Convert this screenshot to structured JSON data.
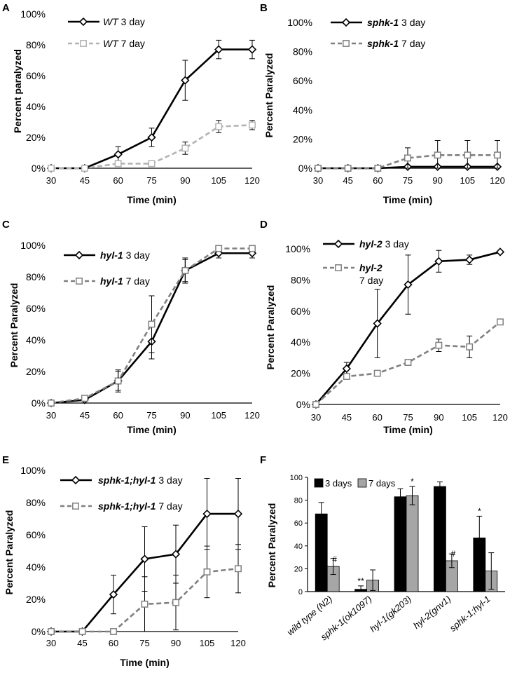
{
  "chart_data": [
    {
      "panel": "A",
      "type": "line",
      "ylabel": "Percent paralyzed",
      "xlabel": "Time (min)",
      "x": [
        "30",
        "45",
        "60",
        "75",
        "90",
        "105",
        "120"
      ],
      "yticks": [
        "0%",
        "20%",
        "40%",
        "60%",
        "80%",
        "100%"
      ],
      "ylim": [
        0,
        100
      ],
      "legend_position": "top-left",
      "series": [
        {
          "name": "3 day",
          "strain": "WT",
          "style": "solid",
          "marker": "diamond",
          "color": "#000000",
          "values": [
            0,
            0,
            9,
            20,
            57,
            77,
            77
          ],
          "errors": [
            0,
            0,
            5,
            6,
            13,
            6,
            6
          ]
        },
        {
          "name": "7 day",
          "strain": "WT",
          "style": "dashed",
          "marker": "square",
          "color": "#b3b3b3",
          "values": [
            0,
            0,
            3,
            3,
            13,
            27,
            28
          ],
          "errors": [
            0,
            0,
            0,
            0,
            4,
            4,
            3
          ]
        }
      ]
    },
    {
      "panel": "B",
      "type": "line",
      "ylabel": "Percent Paralyzed",
      "xlabel": "Time (min)",
      "x": [
        "30",
        "45",
        "60",
        "75",
        "90",
        "105",
        "120"
      ],
      "yticks": [
        "0%",
        "20%",
        "40%",
        "60%",
        "80%",
        "100%"
      ],
      "ylim": [
        0,
        100
      ],
      "legend_position": "top-left",
      "series": [
        {
          "name": "3 day",
          "strain": "sphk-1",
          "style": "solid",
          "marker": "diamond",
          "color": "#000000",
          "values": [
            0,
            0,
            0,
            1,
            1,
            1,
            1
          ],
          "errors": [
            0,
            0,
            0,
            0,
            0,
            0,
            0
          ]
        },
        {
          "name": "7 day",
          "strain": "sphk-1",
          "style": "dashed",
          "marker": "square",
          "color": "#808080",
          "values": [
            0,
            0,
            0,
            7,
            9,
            9,
            9
          ],
          "errors": [
            0,
            0,
            0,
            7,
            10,
            10,
            10
          ]
        }
      ]
    },
    {
      "panel": "C",
      "type": "line",
      "ylabel": "Percent Paralyzed",
      "xlabel": "Time (min)",
      "x": [
        "30",
        "45",
        "60",
        "75",
        "90",
        "105",
        "120"
      ],
      "yticks": [
        "0%",
        "20%",
        "40%",
        "60%",
        "80%",
        "100%"
      ],
      "ylim": [
        0,
        100
      ],
      "legend_position": "top-left",
      "series": [
        {
          "name": "3 day",
          "strain": "hyl-1",
          "style": "solid",
          "marker": "diamond",
          "color": "#000000",
          "values": [
            0,
            2,
            14,
            39,
            84,
            95,
            95
          ],
          "errors": [
            0,
            0,
            7,
            11,
            8,
            3,
            3
          ]
        },
        {
          "name": "7 day",
          "strain": "hyl-1",
          "style": "dashed",
          "marker": "square",
          "color": "#808080",
          "values": [
            0,
            3,
            14,
            50,
            84,
            98,
            98
          ],
          "errors": [
            0,
            0,
            6,
            18,
            7,
            0,
            0
          ]
        }
      ]
    },
    {
      "panel": "D",
      "type": "line",
      "ylabel": "Percent Paralyzed",
      "xlabel": "Time (min)",
      "x": [
        "30",
        "45",
        "60",
        "75",
        "90",
        "105",
        "120"
      ],
      "yticks": [
        "0%",
        "20%",
        "40%",
        "60%",
        "80%",
        "100%"
      ],
      "ylim": [
        0,
        100
      ],
      "legend_position": "top-left",
      "series": [
        {
          "name": "3 day",
          "strain": "hyl-2",
          "style": "solid",
          "marker": "diamond",
          "color": "#000000",
          "values": [
            0,
            23,
            52,
            77,
            92,
            93,
            98
          ],
          "errors": [
            0,
            4,
            22,
            19,
            7,
            3,
            0
          ]
        },
        {
          "name": "7 day",
          "strain": "hyl-2",
          "style": "dashed",
          "marker": "square",
          "color": "#808080",
          "values": [
            0,
            18,
            20,
            27,
            38,
            37,
            53
          ],
          "errors": [
            0,
            0,
            0,
            0,
            4,
            7,
            0
          ]
        }
      ]
    },
    {
      "panel": "E",
      "type": "line",
      "ylabel": "Percent Paralyzed",
      "xlabel": "Time (min)",
      "x": [
        "30",
        "45",
        "60",
        "75",
        "90",
        "105",
        "120"
      ],
      "yticks": [
        "0%",
        "20%",
        "40%",
        "60%",
        "80%",
        "100%"
      ],
      "ylim": [
        0,
        100
      ],
      "legend_position": "top-left",
      "series": [
        {
          "name": "3 day",
          "strain": "sphk-1;hyl-1",
          "style": "solid",
          "marker": "diamond",
          "color": "#000000",
          "values": [
            0,
            0,
            23,
            45,
            48,
            73,
            73
          ],
          "errors": [
            0,
            0,
            12,
            20,
            18,
            22,
            22
          ]
        },
        {
          "name": "7 day",
          "strain": "sphk-1;hyl-1",
          "style": "dashed",
          "marker": "square",
          "color": "#808080",
          "values": [
            0,
            0,
            0,
            17,
            18,
            37,
            39
          ],
          "errors": [
            0,
            0,
            0,
            17,
            17,
            16,
            15
          ]
        }
      ]
    },
    {
      "panel": "F",
      "type": "bar",
      "ylabel": "Percent Paralyzed",
      "categories": [
        "wild type (N2)",
        "sphk-1(ok1097)",
        "hyl-1(gk203)",
        "hyl-2(gnv1)",
        "sphk-1;hyl-1"
      ],
      "yticks": [
        "0",
        "20",
        "40",
        "60",
        "80",
        "100"
      ],
      "ylim": [
        0,
        100
      ],
      "legend_position": "top-left",
      "series": [
        {
          "name": "3 days",
          "color": "#000000",
          "values": [
            68,
            2,
            83,
            92,
            47
          ],
          "errors": [
            10,
            3,
            7,
            4,
            19
          ],
          "annotations": [
            "",
            "**",
            "",
            "",
            "*"
          ]
        },
        {
          "name": "7 days",
          "color": "#a6a6a6",
          "values": [
            22,
            10,
            84,
            27,
            18
          ],
          "errors": [
            7,
            9,
            8,
            6,
            16
          ],
          "annotations": [
            "#",
            "",
            "*",
            "#",
            ""
          ]
        }
      ]
    }
  ]
}
